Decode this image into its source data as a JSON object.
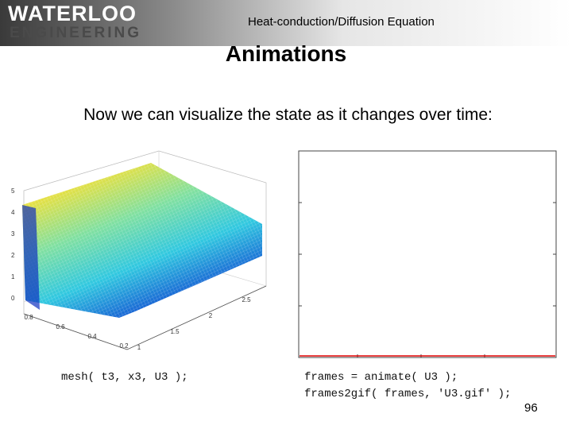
{
  "header": {
    "logo_top": "WATERLOO",
    "logo_bottom": "ENGINEERING",
    "topic": "Heat-conduction/Diffusion Equation"
  },
  "title": "Animations",
  "body": "Now we can visualize the state as it changes over time:",
  "left_figure": {
    "z_ticks": [
      "0",
      "1",
      "2",
      "3",
      "4",
      "5"
    ],
    "x_ticks": [
      "0.8",
      "0.6",
      "0.4",
      "0.2"
    ],
    "t_ticks": [
      "1",
      "1.5",
      "2",
      "2.5"
    ]
  },
  "left_caption": "mesh( t3, x3, U3 );",
  "right_caption": [
    "frames = animate( U3 );",
    "frames2gif( frames, 'U3.gif' );"
  ],
  "page_number": "96"
}
